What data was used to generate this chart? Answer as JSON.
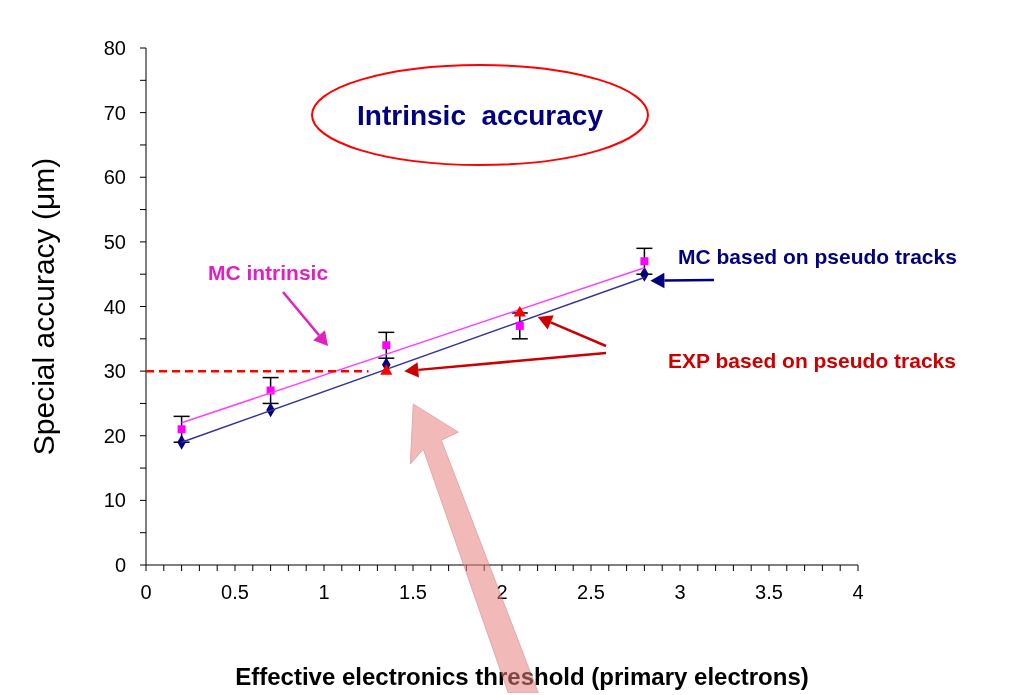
{
  "chart_data": {
    "type": "scatter",
    "xlabel": "Effective electronics threshold (primary electrons)",
    "ylabel": "Special accuracy (μm)",
    "xlim": [
      0,
      4
    ],
    "ylim": [
      0,
      80
    ],
    "xticks": [
      0,
      {
        "value": 0.1,
        "label": null
      },
      {
        "value": 0.2,
        "label": null
      },
      {
        "value": 0.3,
        "label": null
      },
      {
        "value": 0.4,
        "label": null
      },
      0.5,
      {
        "value": 0.6,
        "label": null
      },
      {
        "value": 0.7,
        "label": null
      },
      {
        "value": 0.8,
        "label": null
      },
      {
        "value": 0.9,
        "label": null
      },
      1,
      {
        "value": 1.1,
        "label": null
      },
      {
        "value": 1.2,
        "label": null
      },
      {
        "value": 1.3,
        "label": null
      },
      {
        "value": 1.4,
        "label": null
      },
      1.5,
      {
        "value": 1.6,
        "label": null
      },
      {
        "value": 1.7,
        "label": null
      },
      {
        "value": 1.8,
        "label": null
      },
      {
        "value": 1.9,
        "label": null
      },
      2,
      {
        "value": 2.1,
        "label": null
      },
      {
        "value": 2.2,
        "label": null
      },
      {
        "value": 2.3,
        "label": null
      },
      {
        "value": 2.4,
        "label": null
      },
      2.5,
      {
        "value": 2.6,
        "label": null
      },
      {
        "value": 2.7,
        "label": null
      },
      {
        "value": 2.8,
        "label": null
      },
      {
        "value": 2.9,
        "label": null
      },
      3,
      {
        "value": 3.1,
        "label": null
      },
      {
        "value": 3.2,
        "label": null
      },
      {
        "value": 3.3,
        "label": null
      },
      {
        "value": 3.4,
        "label": null
      },
      3.5,
      {
        "value": 3.6,
        "label": null
      },
      {
        "value": 3.7,
        "label": null
      },
      {
        "value": 3.8,
        "label": null
      },
      {
        "value": 3.9,
        "label": null
      },
      4
    ],
    "yticks": [
      0,
      {
        "value": 5,
        "label": null
      },
      10,
      {
        "value": 15,
        "label": null
      },
      20,
      {
        "value": 25,
        "label": null
      },
      30,
      {
        "value": 35,
        "label": null
      },
      40,
      {
        "value": 45,
        "label": null
      },
      50,
      {
        "value": 55,
        "label": null
      },
      60,
      {
        "value": 65,
        "label": null
      },
      70,
      {
        "value": 75,
        "label": null
      },
      80
    ],
    "grid": false,
    "legend": false,
    "series": [
      {
        "type": "scatter",
        "marker": "diamond",
        "color": "#000080",
        "x": [
          0.2,
          0.7,
          1.35,
          2.1,
          2.8
        ],
        "values": [
          19,
          24,
          31,
          null,
          45
        ]
      },
      {
        "type": "line",
        "marker": "none",
        "color": "#333399",
        "x": [
          0.2,
          2.8
        ],
        "values": [
          19,
          44.5
        ]
      },
      {
        "type": "scatter",
        "marker": "square",
        "color": "#ff00ff",
        "x": [
          0.2,
          0.7,
          1.35,
          2.1,
          2.8
        ],
        "values": [
          21,
          27,
          34,
          37,
          47
        ],
        "errors": [
          2,
          2,
          2,
          2,
          2
        ]
      },
      {
        "type": "line",
        "marker": "none",
        "color": "#ff40ff",
        "x": [
          0.2,
          2.8
        ],
        "values": [
          22,
          46
        ]
      },
      {
        "type": "scatter",
        "marker": "triangle",
        "color": "#ff0000",
        "x": [
          1.35,
          2.1
        ],
        "values": [
          30,
          39
        ]
      },
      {
        "type": "line",
        "marker": "none",
        "line_style": "dashed",
        "color": "#ff0000",
        "x": [
          0,
          1.25
        ],
        "values": [
          30,
          30
        ]
      }
    ],
    "annotations": [
      "Intrinsic  accuracy",
      "MC intrinsic",
      {
        "text": "MC based on pseudo tracks",
        "x": 2.8,
        "y": 44
      },
      "EXP based on pseudo tracks"
    ]
  }
}
